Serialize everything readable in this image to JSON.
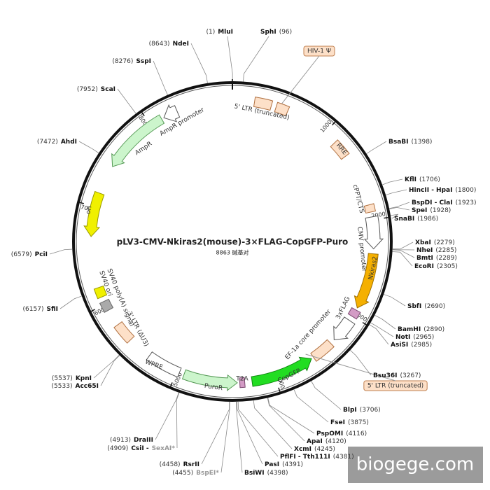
{
  "title": "pLV3-CMV-Nkiras2(mouse)-3×FLAG-CopGFP-Puro",
  "subtitle": "8863 碱基对",
  "sites": [
    {
      "name": "MluI",
      "position": "(1)"
    },
    {
      "name": "SphI",
      "position": "(96)"
    },
    {
      "name": "NdeI",
      "position": "(8643)"
    },
    {
      "name": "SspI",
      "position": "(8276)"
    },
    {
      "name": "ScaI",
      "position": "(7952)"
    },
    {
      "name": "AhdI",
      "position": "(7472)"
    },
    {
      "name": "PciI",
      "position": "(6579)"
    },
    {
      "name": "SfiI",
      "position": "(6157)"
    },
    {
      "name": "KpnI",
      "position": "(5537)"
    },
    {
      "name": "Acc65I",
      "position": "(5533)"
    },
    {
      "name": "DraIII",
      "position": "(4913)"
    },
    {
      "name": "CsiI -",
      "alias": "SexAI*",
      "position": "(4909)"
    },
    {
      "name": "RsrII",
      "position": "(4458)"
    },
    {
      "name": "BspEI*",
      "position": "(4455)",
      "muted": true
    },
    {
      "name": "BsiWI",
      "position": "(4398)"
    },
    {
      "name": "PasI",
      "position": "(4391)"
    },
    {
      "name": "PflFI - Tth111I",
      "position": "(4381)"
    },
    {
      "name": "XcmI",
      "position": "(4245)"
    },
    {
      "name": "ApaI",
      "position": "(4120)"
    },
    {
      "name": "PspOMI",
      "position": "(4116)"
    },
    {
      "name": "FseI",
      "position": "(3875)"
    },
    {
      "name": "BlpI",
      "position": "(3706)"
    },
    {
      "name": "Bsu36I",
      "position": "(3267)"
    },
    {
      "name": "AsiSI",
      "position": "(2985)"
    },
    {
      "name": "NotI",
      "position": "(2965)"
    },
    {
      "name": "BamHI",
      "position": "(2890)"
    },
    {
      "name": "SbfI",
      "position": "(2690)"
    },
    {
      "name": "EcoRI",
      "position": "(2305)"
    },
    {
      "name": "BmtI",
      "position": "(2289)"
    },
    {
      "name": "NheI",
      "position": "(2285)"
    },
    {
      "name": "XbaI",
      "position": "(2279)"
    },
    {
      "name": "SnaBI",
      "position": "(1986)"
    },
    {
      "name": "SpeI",
      "position": "(1928)"
    },
    {
      "name": "BspDI - ClaI",
      "position": "(1923)"
    },
    {
      "name": "HincII - HpaI",
      "position": "(1800)"
    },
    {
      "name": "KflI",
      "position": "(1706)"
    },
    {
      "name": "BsaBI",
      "position": "(1398)"
    }
  ],
  "features": [
    {
      "label": "HIV-1 Ψ"
    },
    {
      "label": "5' LTR (truncated)"
    },
    {
      "label": "RRE"
    },
    {
      "label": "cPPT/CTS"
    },
    {
      "label": "CMV promoter"
    },
    {
      "label": "Nkiras2"
    },
    {
      "label": "3xFLAG"
    },
    {
      "label": "EF-1a core promoter"
    },
    {
      "label": "CopGFP"
    },
    {
      "label": "T2A"
    },
    {
      "label": "PuroR"
    },
    {
      "label": "WPRE"
    },
    {
      "label": "3' LTR (ΔU3)"
    },
    {
      "label": "SV40 poly(A) signal"
    },
    {
      "label": "SV40 ori"
    },
    {
      "label": "ori"
    },
    {
      "label": "AmpR"
    },
    {
      "label": "AmpR promoter"
    },
    {
      "label": "5' LTR (truncated)"
    }
  ],
  "ticks": [
    1000,
    2000,
    3000,
    4000,
    5000,
    6000,
    7000,
    8000
  ],
  "watermark": "biogege.com"
}
